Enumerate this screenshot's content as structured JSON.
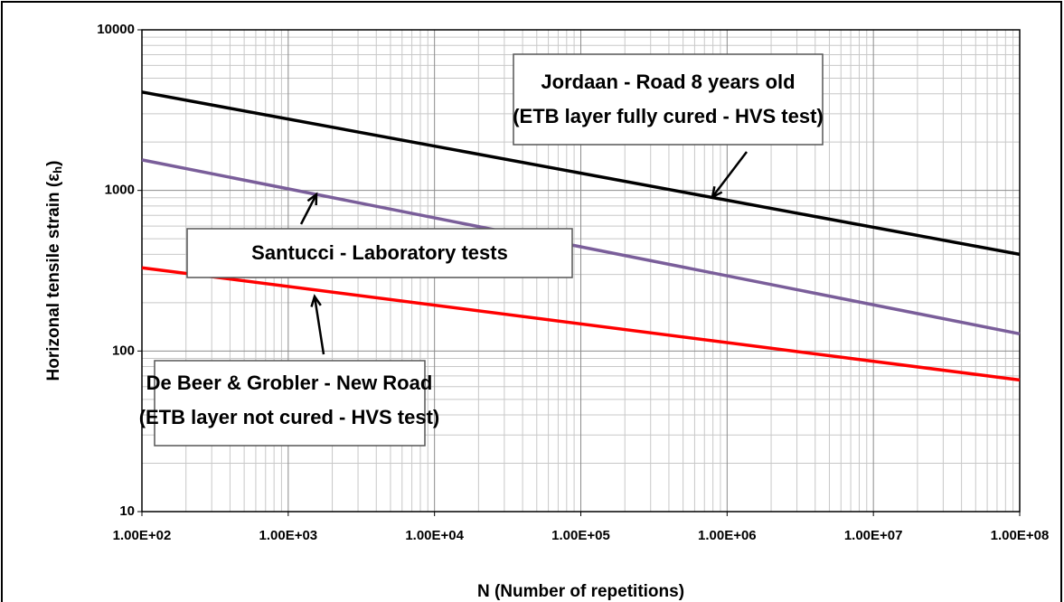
{
  "chart_data": {
    "type": "line",
    "x_label": "N (Number of repetitions)",
    "y_label_parts": [
      "Horizonal tensile strain (ε",
      "h",
      ")"
    ],
    "log_x": true,
    "log_y": true,
    "grid": true,
    "x": [
      100,
      100000000
    ],
    "xlim": [
      100,
      100000000
    ],
    "xticks": [
      {
        "value": 100,
        "label": "1.00E+02"
      },
      {
        "value": 1000,
        "label": "1.00E+03"
      },
      {
        "value": 10000,
        "label": "1.00E+04"
      },
      {
        "value": 100000,
        "label": "1.00E+05"
      },
      {
        "value": 1000000,
        "label": "1.00E+06"
      },
      {
        "value": 10000000,
        "label": "1.00E+07"
      },
      {
        "value": 100000000,
        "label": "1.00E+08"
      }
    ],
    "ylim": [
      10,
      10000
    ],
    "yticks": [
      10,
      100,
      1000,
      10000
    ],
    "series": [
      {
        "name": "Jordaan - Road 8 years old",
        "color": "#000000",
        "values": [
          4100,
          400
        ]
      },
      {
        "name": "Santucci - Laboratory tests",
        "color": "#7a5e9a",
        "values": [
          1550,
          128
        ]
      },
      {
        "name": "De Beer & Grobler - New Road",
        "color": "#ff0000",
        "values": [
          330,
          66
        ]
      }
    ],
    "annotations": [
      [
        "Jordaan - Road 8 years old",
        "(ETB layer fully cured - HVS test)"
      ],
      [
        "Santucci - Laboratory tests"
      ],
      [
        "De Beer & Grobler - New Road",
        "(ETB layer not cured - HVS test)"
      ]
    ]
  }
}
